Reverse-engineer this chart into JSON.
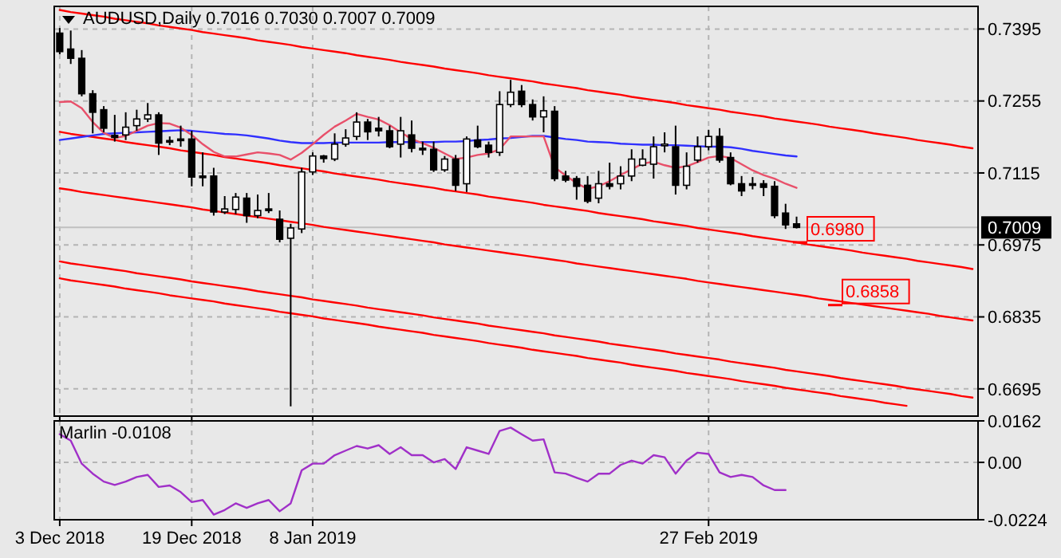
{
  "chart_data": [
    {
      "type": "candlestick",
      "title": "AUDUSD,Daily 0.7016 0.7030 0.7007 0.7009",
      "ohlc": [
        [
          0.7387,
          0.7397,
          0.7346,
          0.7351
        ],
        [
          0.7356,
          0.7392,
          0.7327,
          0.7338
        ],
        [
          0.7338,
          0.7354,
          0.7264,
          0.7269
        ],
        [
          0.7269,
          0.7276,
          0.7192,
          0.7233
        ],
        [
          0.7238,
          0.7245,
          0.7194,
          0.7202
        ],
        [
          0.7188,
          0.7228,
          0.7176,
          0.7184
        ],
        [
          0.7189,
          0.7233,
          0.7179,
          0.7204
        ],
        [
          0.7207,
          0.7238,
          0.7197,
          0.722
        ],
        [
          0.722,
          0.7251,
          0.7214,
          0.7228
        ],
        [
          0.7228,
          0.7233,
          0.715,
          0.7173
        ],
        [
          0.7178,
          0.7186,
          0.7169,
          0.7175
        ],
        [
          0.7181,
          0.7207,
          0.7166,
          0.7179
        ],
        [
          0.7181,
          0.7197,
          0.7089,
          0.7107
        ],
        [
          0.7109,
          0.7155,
          0.7089,
          0.7108
        ],
        [
          0.7109,
          0.7125,
          0.7032,
          0.7039
        ],
        [
          0.7039,
          0.707,
          0.7035,
          0.7045
        ],
        [
          0.7044,
          0.7076,
          0.7035,
          0.7068
        ],
        [
          0.7066,
          0.7076,
          0.7018,
          0.7032
        ],
        [
          0.7032,
          0.7073,
          0.7027,
          0.7042
        ],
        [
          0.7045,
          0.7076,
          0.7037,
          0.7043
        ],
        [
          0.7025,
          0.7042,
          0.698,
          0.6986
        ],
        [
          0.6988,
          0.7016,
          0.6661,
          0.7008
        ],
        [
          0.7006,
          0.7125,
          0.6998,
          0.7117
        ],
        [
          0.7117,
          0.7155,
          0.7111,
          0.7148
        ],
        [
          0.7148,
          0.715,
          0.7135,
          0.7143
        ],
        [
          0.7142,
          0.7192,
          0.7138,
          0.7171
        ],
        [
          0.7171,
          0.72,
          0.7166,
          0.7183
        ],
        [
          0.7186,
          0.7233,
          0.7179,
          0.7214
        ],
        [
          0.7214,
          0.722,
          0.7179,
          0.7195
        ],
        [
          0.7202,
          0.7224,
          0.7186,
          0.7197
        ],
        [
          0.7197,
          0.7207,
          0.7163,
          0.7166
        ],
        [
          0.7171,
          0.7224,
          0.7145,
          0.7197
        ],
        [
          0.7189,
          0.7217,
          0.7155,
          0.7163
        ],
        [
          0.7163,
          0.7176,
          0.715,
          0.7161
        ],
        [
          0.7161,
          0.7176,
          0.7117,
          0.7121
        ],
        [
          0.7121,
          0.7148,
          0.7117,
          0.7142
        ],
        [
          0.7142,
          0.715,
          0.708,
          0.7091
        ],
        [
          0.7094,
          0.7186,
          0.7078,
          0.7181
        ],
        [
          0.7179,
          0.7207,
          0.7163,
          0.7166
        ],
        [
          0.7169,
          0.7176,
          0.7145,
          0.7155
        ],
        [
          0.7155,
          0.7274,
          0.7148,
          0.7248
        ],
        [
          0.7248,
          0.7296,
          0.7243,
          0.7272
        ],
        [
          0.7274,
          0.7286,
          0.7243,
          0.7248
        ],
        [
          0.7248,
          0.7258,
          0.7217,
          0.7224
        ],
        [
          0.7224,
          0.7264,
          0.7194,
          0.7236
        ],
        [
          0.7235,
          0.7245,
          0.7099,
          0.7104
        ],
        [
          0.7109,
          0.7119,
          0.7097,
          0.7101
        ],
        [
          0.7104,
          0.7109,
          0.7063,
          0.7089
        ],
        [
          0.7091,
          0.7109,
          0.7056,
          0.706
        ],
        [
          0.7066,
          0.7119,
          0.7056,
          0.7094
        ],
        [
          0.7094,
          0.7135,
          0.7083,
          0.7089
        ],
        [
          0.7094,
          0.7128,
          0.7083,
          0.7109
        ],
        [
          0.7109,
          0.7161,
          0.7099,
          0.7142
        ],
        [
          0.713,
          0.7161,
          0.7128,
          0.7142
        ],
        [
          0.7132,
          0.7186,
          0.7104,
          0.7166
        ],
        [
          0.7169,
          0.7194,
          0.7155,
          0.7171
        ],
        [
          0.7166,
          0.7207,
          0.7073,
          0.7091
        ],
        [
          0.7091,
          0.7155,
          0.7083,
          0.7128
        ],
        [
          0.714,
          0.7186,
          0.7135,
          0.7166
        ],
        [
          0.7166,
          0.7199,
          0.7159,
          0.7186
        ],
        [
          0.7186,
          0.7202,
          0.7135,
          0.714
        ],
        [
          0.7145,
          0.7155,
          0.7091,
          0.7094
        ],
        [
          0.7094,
          0.7109,
          0.707,
          0.708
        ],
        [
          0.7094,
          0.7107,
          0.7083,
          0.7093
        ],
        [
          0.7094,
          0.7101,
          0.707,
          0.7087
        ],
        [
          0.7089,
          0.7099,
          0.7027,
          0.7032
        ],
        [
          0.7037,
          0.7055,
          0.7006,
          0.7014
        ],
        [
          0.7016,
          0.703,
          0.7007,
          0.7009
        ],
        null,
        null,
        null,
        null,
        null,
        null,
        null,
        null,
        null,
        null,
        null,
        null,
        null,
        null,
        null,
        null
      ],
      "series": [
        {
          "type": "line",
          "color": "#ff0000",
          "values": [
            0.7432,
            0.7428,
            0.7425,
            0.7422,
            0.7419,
            0.7415,
            0.7412,
            0.7409,
            0.7406,
            0.7402,
            0.7399,
            0.7396,
            0.7393,
            0.7389,
            0.7386,
            0.7383,
            0.738,
            0.7377,
            0.7373,
            0.737,
            0.7367,
            0.7364,
            0.736,
            0.7357,
            0.7354,
            0.7351,
            0.7348,
            0.7344,
            0.7341,
            0.7338,
            0.7335,
            0.7331,
            0.7328,
            0.7325,
            0.7322,
            0.7318,
            0.7315,
            0.7312,
            0.7309,
            0.7305,
            0.7302,
            0.7299,
            0.7296,
            0.7293,
            0.7289,
            0.7286,
            0.7283,
            0.728,
            0.7276,
            0.7273,
            0.727,
            0.7267,
            0.7263,
            0.726,
            0.7257,
            0.7254,
            0.7251,
            0.7247,
            0.7244,
            0.7241,
            0.7238,
            0.7234,
            0.7231,
            0.7228,
            0.7225,
            0.7221,
            0.7218,
            0.7215,
            0.7212,
            0.7209,
            0.7205,
            0.7202,
            0.7199,
            0.7196,
            0.7192,
            0.7189,
            0.7186,
            0.7183,
            0.7179,
            0.7176,
            0.7173,
            0.717,
            0.7166,
            0.7163
          ]
        },
        {
          "type": "line",
          "color": "#ff0000",
          "values": [
            0.7195,
            0.7191,
            0.7188,
            0.7185,
            0.7182,
            0.7179,
            0.7175,
            0.7172,
            0.7169,
            0.7166,
            0.7163,
            0.7159,
            0.7156,
            0.7153,
            0.715,
            0.7146,
            0.7143,
            0.714,
            0.7137,
            0.7134,
            0.713,
            0.7127,
            0.7124,
            0.7121,
            0.7118,
            0.7114,
            0.7111,
            0.7108,
            0.7105,
            0.7102,
            0.7098,
            0.7095,
            0.7092,
            0.7089,
            0.7086,
            0.7082,
            0.7079,
            0.7076,
            0.7073,
            0.7069,
            0.7066,
            0.7063,
            0.706,
            0.7057,
            0.7053,
            0.705,
            0.7047,
            0.7044,
            0.7041,
            0.7037,
            0.7034,
            0.7031,
            0.7028,
            0.7025,
            0.7021,
            0.7018,
            0.7015,
            0.7012,
            0.7008,
            0.7005,
            0.7002,
            0.6999,
            0.6996,
            0.6992,
            0.6989,
            0.6986,
            0.6983,
            0.698,
            0.6976,
            0.6973,
            0.697,
            0.6967,
            0.6964,
            0.696,
            0.6957,
            0.6954,
            0.6951,
            0.6948,
            0.6944,
            0.6941,
            0.6938,
            0.6935,
            0.6932,
            0.6928
          ]
        },
        {
          "type": "line",
          "color": "#ff0000",
          "values": [
            0.7085,
            0.7082,
            0.7078,
            0.7075,
            0.7072,
            0.7069,
            0.7066,
            0.7063,
            0.706,
            0.7057,
            0.7054,
            0.7051,
            0.7048,
            0.7044,
            0.7041,
            0.7038,
            0.7035,
            0.7032,
            0.7029,
            0.7026,
            0.7023,
            0.702,
            0.7017,
            0.7014,
            0.701,
            0.7007,
            0.7004,
            0.7001,
            0.6998,
            0.6995,
            0.6992,
            0.6989,
            0.6986,
            0.6983,
            0.698,
            0.6976,
            0.6973,
            0.697,
            0.6967,
            0.6964,
            0.6961,
            0.6958,
            0.6955,
            0.6952,
            0.6949,
            0.6946,
            0.6943,
            0.6939,
            0.6936,
            0.6933,
            0.693,
            0.6927,
            0.6924,
            0.6921,
            0.6918,
            0.6915,
            0.6912,
            0.6909,
            0.6905,
            0.6902,
            0.6899,
            0.6896,
            0.6893,
            0.689,
            0.6887,
            0.6884,
            0.6881,
            0.6878,
            0.6875,
            0.6871,
            0.6868,
            0.6865,
            0.6862,
            0.6859,
            0.6856,
            0.6853,
            0.685,
            0.6847,
            0.6844,
            0.6841,
            0.6837,
            0.6834,
            0.6831,
            0.6828
          ]
        },
        {
          "type": "line",
          "color": "#ff0000",
          "values": [
            0.6943,
            0.6939,
            0.6936,
            0.6933,
            0.693,
            0.6927,
            0.6924,
            0.692,
            0.6917,
            0.6914,
            0.6911,
            0.6908,
            0.6904,
            0.6901,
            0.6898,
            0.6895,
            0.6892,
            0.6889,
            0.6885,
            0.6882,
            0.6879,
            0.6876,
            0.6873,
            0.6869,
            0.6866,
            0.6863,
            0.686,
            0.6857,
            0.6853,
            0.685,
            0.6847,
            0.6844,
            0.6841,
            0.6838,
            0.6834,
            0.6831,
            0.6828,
            0.6825,
            0.6822,
            0.6818,
            0.6815,
            0.6812,
            0.6809,
            0.6806,
            0.6803,
            0.6799,
            0.6796,
            0.6793,
            0.679,
            0.6787,
            0.6783,
            0.678,
            0.6777,
            0.6774,
            0.6771,
            0.6768,
            0.6764,
            0.6761,
            0.6758,
            0.6755,
            0.6752,
            0.6748,
            0.6745,
            0.6742,
            0.6739,
            0.6736,
            0.6732,
            0.6729,
            0.6726,
            0.6723,
            0.672,
            0.6716,
            0.6713,
            0.671,
            0.6707,
            0.6704,
            0.6701,
            0.6697,
            0.6694,
            0.6691,
            0.6688,
            0.6685,
            0.6681,
            0.6678
          ]
        },
        {
          "type": "line",
          "color": "#ff0000",
          "values": [
            0.691,
            0.6906,
            0.6903,
            0.69,
            0.6897,
            0.6894,
            0.689,
            0.6887,
            0.6884,
            0.6881,
            0.6877,
            0.6874,
            0.6871,
            0.6868,
            0.6865,
            0.6861,
            0.6858,
            0.6855,
            0.6852,
            0.6849,
            0.6845,
            0.6842,
            0.6839,
            0.6836,
            0.6832,
            0.6829,
            0.6826,
            0.6823,
            0.682,
            0.6816,
            0.6813,
            0.681,
            0.6807,
            0.6804,
            0.68,
            0.6797,
            0.6794,
            0.6791,
            0.6788,
            0.6784,
            0.6781,
            0.6778,
            0.6775,
            0.6771,
            0.6768,
            0.6765,
            0.6762,
            0.6759,
            0.6755,
            0.6752,
            0.6749,
            0.6746,
            0.6742,
            0.6739,
            0.6736,
            0.6733,
            0.673,
            0.6726,
            0.6723,
            0.672,
            0.6717,
            0.6714,
            0.671,
            0.6707,
            0.6704,
            0.6701,
            0.6697,
            0.6694,
            0.6691,
            0.6688,
            0.6685,
            0.6681,
            0.6678,
            0.6675,
            0.6672,
            0.6668,
            0.6665,
            0.6662,
            null,
            null,
            null,
            null,
            null,
            null
          ]
        },
        {
          "type": "line",
          "color": "#3030ff",
          "values": [
            0.7179,
            0.7182,
            0.7185,
            0.7188,
            0.7191,
            0.7192,
            0.7193,
            0.7194,
            0.7195,
            0.7196,
            0.7197,
            0.7198,
            0.7197,
            0.7195,
            0.7193,
            0.7191,
            0.719,
            0.7188,
            0.7185,
            0.7182,
            0.7178,
            0.7175,
            0.7173,
            0.7173,
            0.7173,
            0.7174,
            0.7174,
            0.7174,
            0.7174,
            0.7174,
            0.7175,
            0.7175,
            0.7175,
            0.7175,
            0.7175,
            0.7176,
            0.7176,
            0.7177,
            0.7179,
            0.718,
            0.7182,
            0.7183,
            0.7185,
            0.7187,
            0.7187,
            0.7184,
            0.7181,
            0.7179,
            0.7176,
            0.7175,
            0.7174,
            0.7172,
            0.7171,
            0.717,
            0.717,
            0.7169,
            0.7169,
            0.7168,
            0.7167,
            0.7166,
            0.7166,
            0.7165,
            0.7162,
            0.7158,
            0.7155,
            0.7152,
            0.7149,
            0.7147,
            null,
            null,
            null,
            null,
            null,
            null,
            null,
            null,
            null,
            null,
            null,
            null,
            null,
            null,
            null,
            null
          ]
        },
        {
          "type": "line",
          "color": "#e8506a",
          "values": [
            0.7253,
            0.7254,
            0.7241,
            0.7214,
            0.7193,
            0.7183,
            0.7187,
            0.7197,
            0.7207,
            0.7212,
            0.7211,
            0.7203,
            0.7189,
            0.7171,
            0.7156,
            0.7147,
            0.7147,
            0.7151,
            0.7155,
            0.7153,
            0.715,
            0.7141,
            0.7154,
            0.7171,
            0.7189,
            0.7205,
            0.7217,
            0.723,
            0.7224,
            0.7219,
            0.7208,
            0.7194,
            0.7181,
            0.7173,
            0.7164,
            0.7153,
            0.7142,
            0.7145,
            0.715,
            0.7153,
            0.7161,
            0.7186,
            0.7186,
            0.7186,
            0.7186,
            0.7126,
            0.711,
            0.7095,
            0.7084,
            0.7089,
            0.7099,
            0.7111,
            0.7122,
            0.7133,
            0.7137,
            0.713,
            0.7125,
            0.7128,
            0.7136,
            0.7145,
            0.7148,
            0.7144,
            0.7132,
            0.712,
            0.7111,
            0.7104,
            0.7094,
            0.7086,
            null,
            null,
            null,
            null,
            null,
            null,
            null,
            null,
            null,
            null,
            null,
            null,
            null,
            null,
            null,
            null
          ]
        }
      ],
      "ylim": [
        0.6642,
        0.7439
      ],
      "yticks": [
        0.6695,
        0.6835,
        0.6975,
        0.7115,
        0.7255,
        0.7395
      ],
      "tick_labels": "y",
      "grid": true,
      "ref_lines": [
        {
          "axis": "y",
          "value": 0.7009,
          "label": "0.7009",
          "color": "#c0c0c0"
        }
      ],
      "annotations": [
        {
          "text": "0.6980",
          "y": 0.698
        },
        {
          "text": "0.6858",
          "y": 0.6858
        }
      ]
    },
    {
      "type": "line",
      "title": "Marlin -0.0108",
      "color": "#a030c8",
      "categories": [
        "3 Dec 2018",
        null,
        null,
        null,
        null,
        null,
        null,
        null,
        null,
        null,
        null,
        null,
        "19 Dec 2018",
        null,
        null,
        null,
        null,
        null,
        null,
        null,
        null,
        null,
        null,
        "8 Jan 2019",
        null,
        null,
        null,
        null,
        null,
        null,
        null,
        null,
        null,
        null,
        null,
        null,
        null,
        null,
        null,
        null,
        null,
        null,
        null,
        null,
        null,
        null,
        null,
        null,
        null,
        null,
        null,
        null,
        null,
        null,
        null,
        null,
        null,
        null,
        null,
        "27 Feb 2019",
        null,
        null,
        null,
        null,
        null,
        null,
        null,
        null,
        null,
        null,
        null,
        null,
        null,
        null,
        null,
        null,
        null,
        null,
        null,
        null,
        null,
        null,
        null,
        null
      ],
      "values": [
        0.011,
        0.0085,
        -0.0005,
        -0.0044,
        -0.0075,
        -0.0088,
        -0.0075,
        -0.0057,
        -0.0049,
        -0.0096,
        -0.009,
        -0.0116,
        -0.0155,
        -0.0147,
        -0.0204,
        -0.0186,
        -0.016,
        -0.0178,
        -0.016,
        -0.0147,
        -0.0191,
        -0.016,
        -0.0031,
        -0.0005,
        -0.0005,
        0.0028,
        0.0046,
        0.0064,
        0.0054,
        0.0067,
        0.0033,
        0.0059,
        0.0028,
        0.0028,
        0,
        0.0013,
        -0.0026,
        0.0059,
        0.0046,
        0.0033,
        0.0123,
        0.0136,
        0.011,
        0.0085,
        0.009,
        -0.0039,
        -0.0044,
        -0.006,
        -0.0075,
        -0.0044,
        -0.0044,
        -0.001,
        0.0007,
        -0.0005,
        0.0028,
        0.002,
        -0.0044,
        0.0007,
        0.0038,
        0.0033,
        -0.0039,
        -0.0057,
        -0.0049,
        -0.0057,
        -0.009,
        -0.0108,
        -0.0108,
        null,
        null,
        null,
        null,
        null,
        null,
        null,
        null,
        null,
        null,
        null,
        null,
        null,
        null,
        null,
        null,
        null
      ],
      "ylim": [
        -0.0224,
        0.0162
      ],
      "yticks": [
        -0.0224,
        {
          "value": 0,
          "label": "0.00"
        },
        0.0162
      ],
      "grid": true
    }
  ]
}
